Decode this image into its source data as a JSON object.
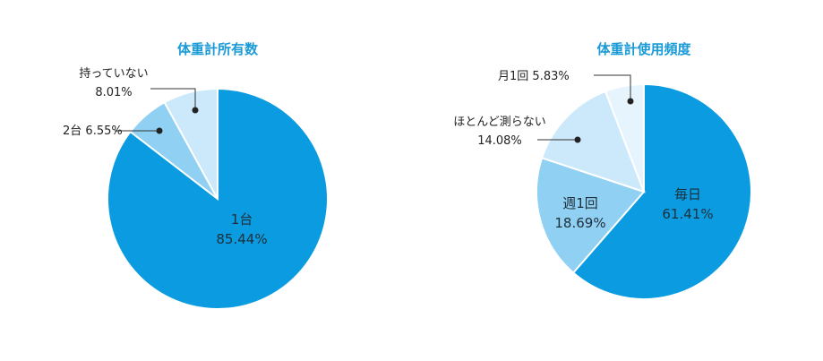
{
  "chart_data": [
    {
      "type": "pie",
      "title": "体重計所有数",
      "slices": [
        {
          "label": "1台",
          "value": 85.44,
          "value_text": "85.44%",
          "color": "#0a9be0"
        },
        {
          "label": "2台",
          "value": 6.55,
          "value_text": "6.55%",
          "color": "#8fd0f3"
        },
        {
          "label": "持っていない",
          "value": 8.01,
          "value_text": "8.01%",
          "color": "#cbe9fb"
        }
      ]
    },
    {
      "type": "pie",
      "title": "体重計使用頻度",
      "slices": [
        {
          "label": "毎日",
          "value": 61.41,
          "value_text": "61.41%",
          "color": "#0a9be0"
        },
        {
          "label": "週1回",
          "value": 18.69,
          "value_text": "18.69%",
          "color": "#8fd0f3"
        },
        {
          "label": "ほとんど測らない",
          "value": 14.08,
          "value_text": "14.08%",
          "color": "#cbe9fb"
        },
        {
          "label": "月1回",
          "value": 5.83,
          "value_text": "5.83%",
          "color": "#e6f4fd"
        }
      ]
    }
  ]
}
